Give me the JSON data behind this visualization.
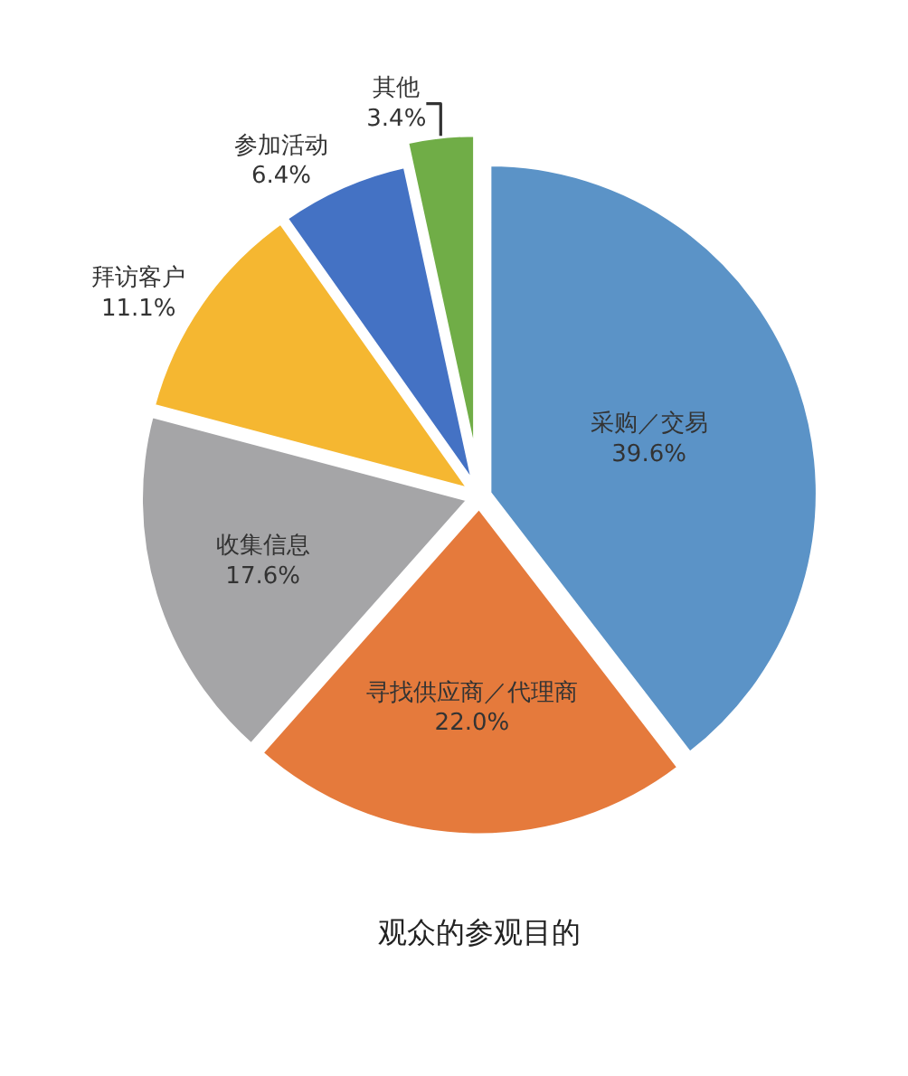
{
  "chart_data": {
    "type": "pie",
    "title": "观众的参观目的",
    "categories": [
      "采购／交易",
      "寻找供应商／代理商",
      "收集信息",
      "拜访客户",
      "参加活动",
      "其他"
    ],
    "values": [
      39.6,
      22.0,
      17.6,
      11.1,
      6.4,
      3.4
    ],
    "value_labels": [
      "39.6%",
      "22.0%",
      "17.6%",
      "11.1%",
      "6.4%",
      "3.4%"
    ],
    "colors": [
      "#5b93c7",
      "#e57a3c",
      "#a5a5a7",
      "#f5b731",
      "#4472c4",
      "#70ad47"
    ]
  }
}
